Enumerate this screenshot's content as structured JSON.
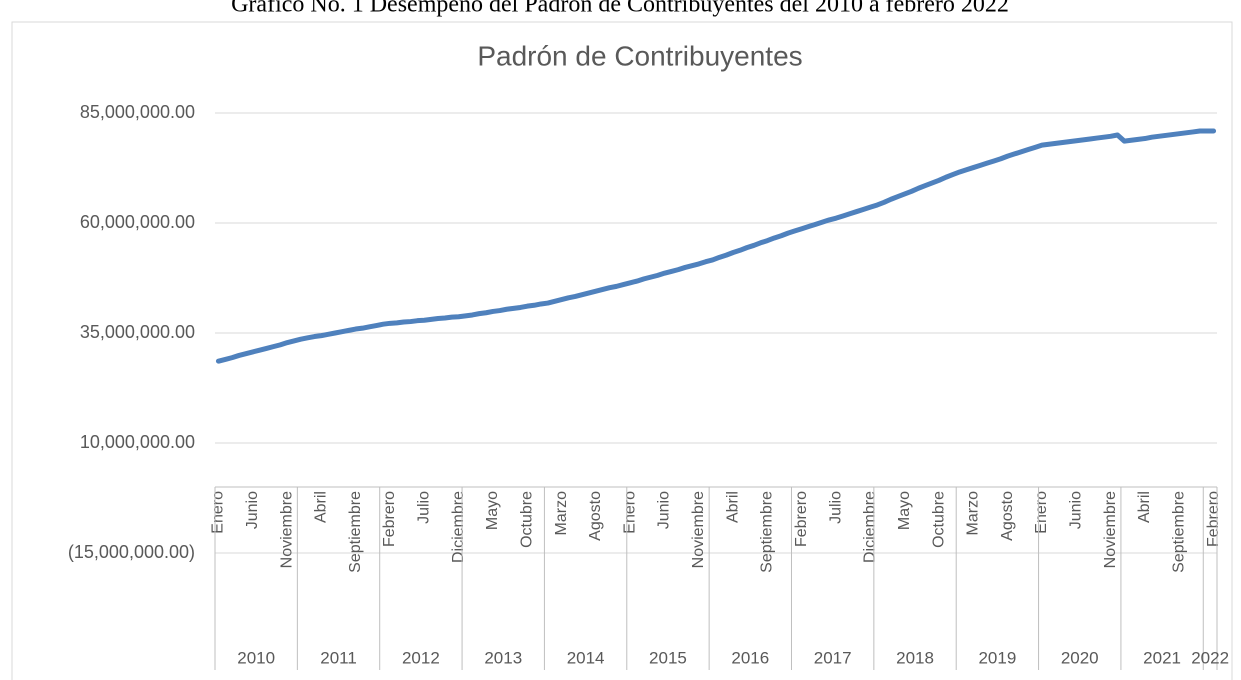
{
  "header": "Gráfico No. 1 Desempeño del Padrón de Contribuyentes del 2010 a febrero 2022",
  "chart_data": {
    "type": "line",
    "title": "Padrón de Contribuyentes",
    "categories": [
      "Enero",
      null,
      null,
      null,
      null,
      "Junio",
      null,
      null,
      null,
      null,
      "Noviembre",
      null,
      null,
      null,
      null,
      "Abril",
      null,
      null,
      null,
      null,
      "Septiembre",
      null,
      null,
      null,
      null,
      "Febrero",
      null,
      null,
      null,
      null,
      "Julio",
      null,
      null,
      null,
      null,
      "Diciembre",
      null,
      null,
      null,
      null,
      "Mayo",
      null,
      null,
      null,
      null,
      "Octubre",
      null,
      null,
      null,
      null,
      "Marzo",
      null,
      null,
      null,
      null,
      "Agosto",
      null,
      null,
      null,
      null,
      "Enero",
      null,
      null,
      null,
      null,
      "Junio",
      null,
      null,
      null,
      null,
      "Noviembre",
      null,
      null,
      null,
      null,
      "Abril",
      null,
      null,
      null,
      null,
      "Septiembre",
      null,
      null,
      null,
      null,
      "Febrero",
      null,
      null,
      null,
      null,
      "Julio",
      null,
      null,
      null,
      null,
      "Diciembre",
      null,
      null,
      null,
      null,
      "Mayo",
      null,
      null,
      null,
      null,
      "Octubre",
      null,
      null,
      null,
      null,
      "Marzo",
      null,
      null,
      null,
      null,
      "Agosto",
      null,
      null,
      null,
      null,
      "Enero",
      null,
      null,
      null,
      null,
      "Junio",
      null,
      null,
      null,
      null,
      "Noviembre",
      null,
      null,
      null,
      null,
      "Abril",
      null,
      null,
      null,
      null,
      "Septiembre",
      null,
      null,
      null,
      null,
      "Febrero"
    ],
    "years": [
      "2010",
      "2011",
      "2012",
      "2013",
      "2014",
      "2015",
      "2016",
      "2017",
      "2018",
      "2019",
      "2020",
      "2021",
      "2022"
    ],
    "series": [
      {
        "name": "Padrón de Contribuyentes",
        "color": "#4f81bd",
        "values": [
          28600000,
          29000000,
          29400000,
          29900000,
          30300000,
          30700000,
          31100000,
          31500000,
          31900000,
          32300000,
          32800000,
          33200000,
          33600000,
          33900000,
          34200000,
          34400000,
          34700000,
          35000000,
          35300000,
          35600000,
          35900000,
          36100000,
          36400000,
          36700000,
          37000000,
          37200000,
          37300000,
          37500000,
          37600000,
          37800000,
          37900000,
          38100000,
          38300000,
          38400000,
          38600000,
          38700000,
          38900000,
          39100000,
          39400000,
          39600000,
          39900000,
          40100000,
          40400000,
          40600000,
          40800000,
          41100000,
          41300000,
          41600000,
          41800000,
          42200000,
          42600000,
          43000000,
          43300000,
          43700000,
          44100000,
          44500000,
          44900000,
          45300000,
          45600000,
          46000000,
          46400000,
          46800000,
          47300000,
          47700000,
          48100000,
          48600000,
          49000000,
          49400000,
          49900000,
          50300000,
          50700000,
          51200000,
          51600000,
          52200000,
          52700000,
          53300000,
          53800000,
          54400000,
          54900000,
          55500000,
          56000000,
          56600000,
          57100000,
          57700000,
          58200000,
          58700000,
          59200000,
          59700000,
          60200000,
          60700000,
          61100000,
          61600000,
          62100000,
          62600000,
          63100000,
          63600000,
          64100000,
          64700000,
          65400000,
          66000000,
          66600000,
          67200000,
          67900000,
          68500000,
          69100000,
          69700000,
          70400000,
          71000000,
          71600000,
          72100000,
          72600000,
          73100000,
          73600000,
          74100000,
          74600000,
          75200000,
          75700000,
          76200000,
          76700000,
          77200000,
          77700000,
          77900000,
          78100000,
          78300000,
          78500000,
          78700000,
          78900000,
          79100000,
          79300000,
          79500000,
          79700000,
          80000000,
          78600000,
          78800000,
          79000000,
          79200000,
          79500000,
          79700000,
          79900000,
          80100000,
          80300000,
          80500000,
          80700000,
          80900000,
          80900000,
          80900000
        ]
      }
    ],
    "ylim": [
      -15000000,
      85000000
    ],
    "yticks": [
      {
        "value": -15000000,
        "label": "(15,000,000.00)"
      },
      {
        "value": 10000000,
        "label": "10,000,000.00"
      },
      {
        "value": 35000000,
        "label": "35,000,000.00"
      },
      {
        "value": 60000000,
        "label": "60,000,000.00"
      },
      {
        "value": 85000000,
        "label": "85,000,000.00"
      }
    ],
    "grid": true
  }
}
